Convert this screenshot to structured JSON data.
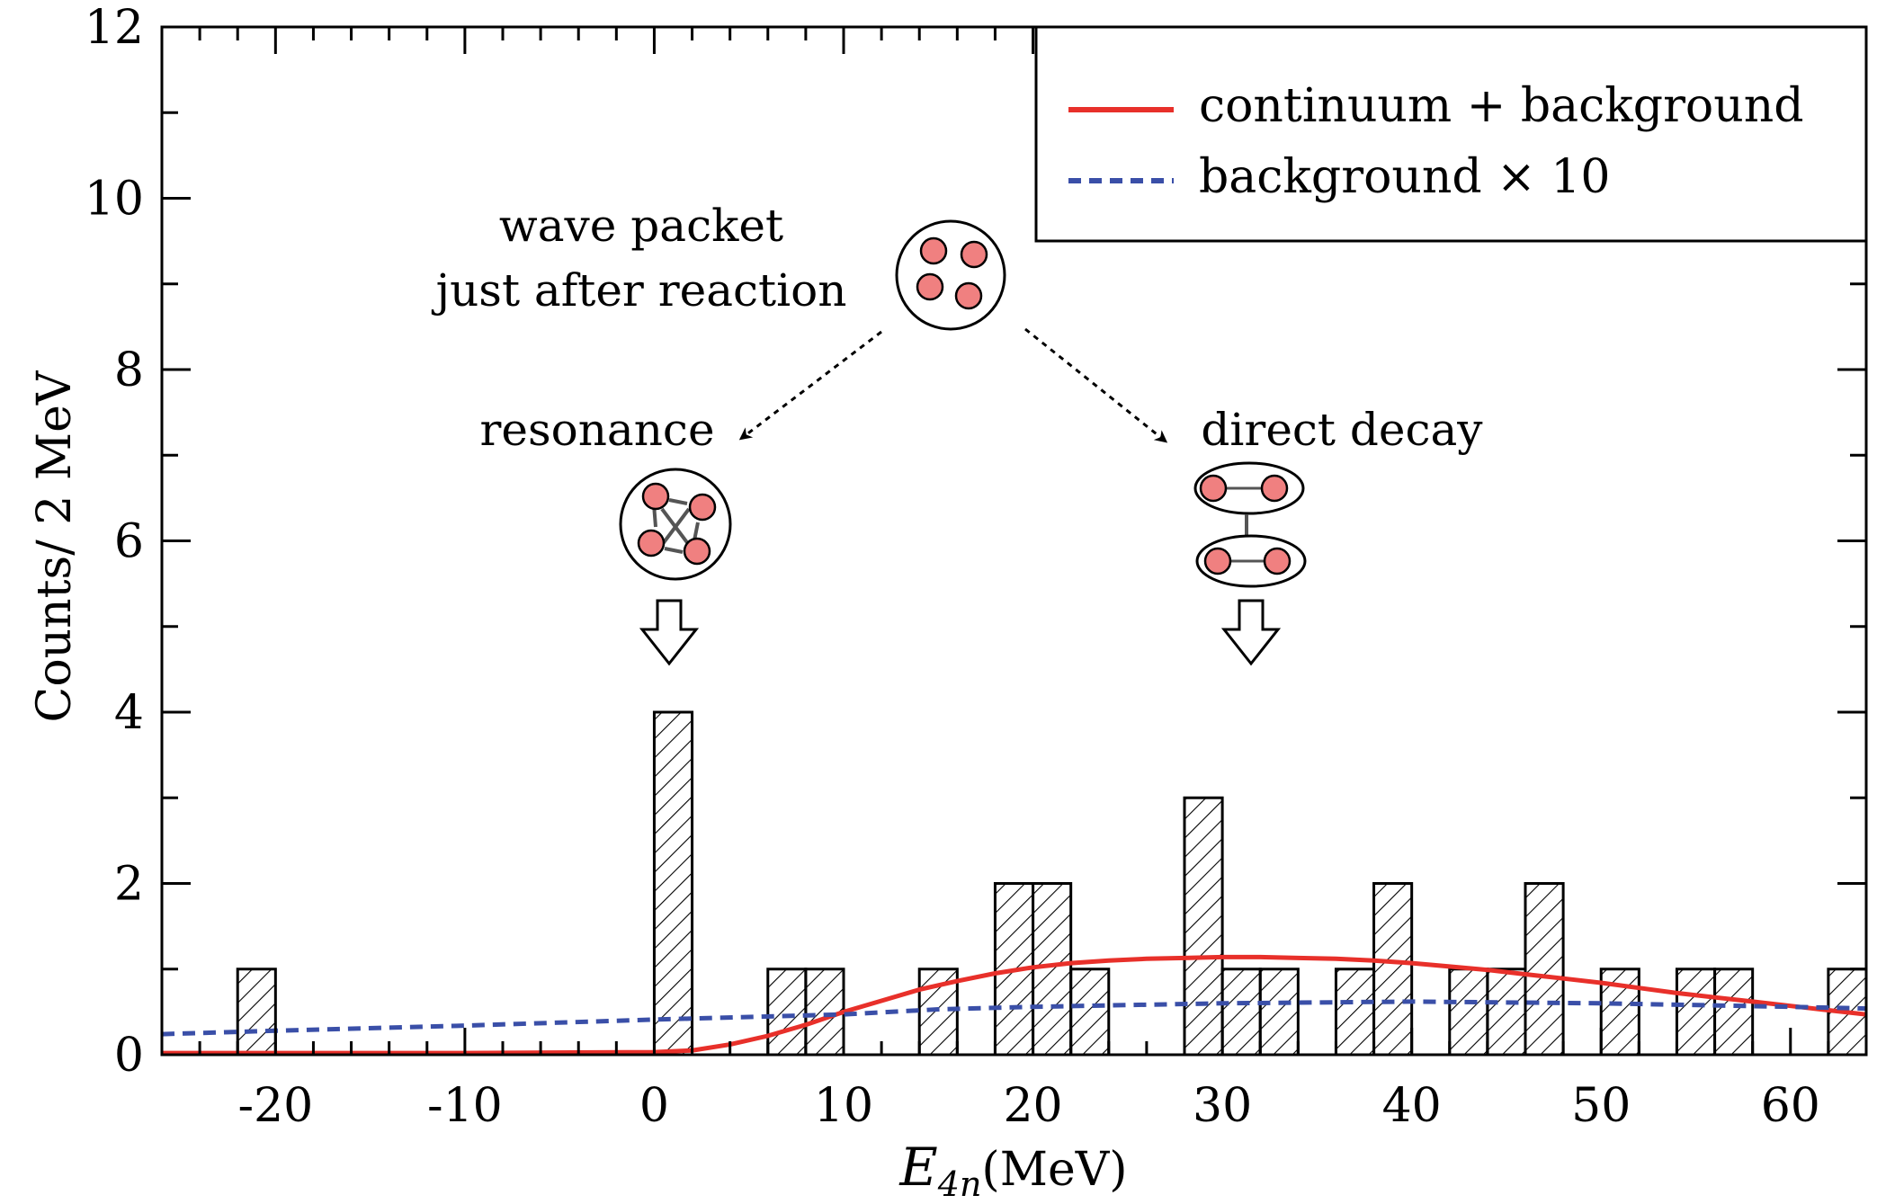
{
  "chart_data": {
    "type": "bar",
    "title": "",
    "xlabel": "E",
    "xlabel_sub": "4n",
    "xlabel_unit": "(MeV)",
    "ylabel": "Counts/ 2 MeV",
    "xlim": [
      -26,
      64
    ],
    "ylim": [
      0,
      12
    ],
    "x_ticks": [
      -20,
      -10,
      0,
      10,
      20,
      30,
      40,
      50,
      60
    ],
    "x_tick_labels": [
      "-20",
      "-10",
      "0",
      "10",
      "20",
      "30",
      "40",
      "50",
      "60"
    ],
    "y_ticks": [
      0,
      2,
      4,
      6,
      8,
      10,
      12
    ],
    "y_tick_labels": [
      "0",
      "2",
      "4",
      "6",
      "8",
      "10",
      "12"
    ],
    "bin_width": 2,
    "histogram": {
      "name": "data",
      "bins": [
        {
          "start": -22,
          "count": 1
        },
        {
          "start": 0,
          "count": 4
        },
        {
          "start": 6,
          "count": 1
        },
        {
          "start": 8,
          "count": 1
        },
        {
          "start": 14,
          "count": 1
        },
        {
          "start": 18,
          "count": 2
        },
        {
          "start": 20,
          "count": 2
        },
        {
          "start": 22,
          "count": 1
        },
        {
          "start": 28,
          "count": 3
        },
        {
          "start": 30,
          "count": 1
        },
        {
          "start": 32,
          "count": 1
        },
        {
          "start": 36,
          "count": 1
        },
        {
          "start": 38,
          "count": 2
        },
        {
          "start": 42,
          "count": 1
        },
        {
          "start": 44,
          "count": 1
        },
        {
          "start": 46,
          "count": 2
        },
        {
          "start": 50,
          "count": 1
        },
        {
          "start": 54,
          "count": 1
        },
        {
          "start": 56,
          "count": 1
        },
        {
          "start": 62,
          "count": 1
        }
      ]
    },
    "series": [
      {
        "name": "continuum + background",
        "style": "solid",
        "color": "#e8302a",
        "x": [
          -26,
          -10,
          0,
          2,
          4,
          6,
          8,
          10,
          12,
          14,
          16,
          18,
          20,
          22,
          24,
          26,
          28,
          30,
          32,
          34,
          36,
          38,
          40,
          42,
          44,
          46,
          48,
          50,
          52,
          54,
          56,
          58,
          60,
          62,
          64
        ],
        "y": [
          0.02,
          0.02,
          0.03,
          0.05,
          0.12,
          0.22,
          0.35,
          0.5,
          0.63,
          0.76,
          0.86,
          0.95,
          1.02,
          1.07,
          1.1,
          1.12,
          1.13,
          1.14,
          1.14,
          1.13,
          1.12,
          1.1,
          1.07,
          1.03,
          0.99,
          0.94,
          0.89,
          0.84,
          0.78,
          0.72,
          0.67,
          0.62,
          0.57,
          0.52,
          0.47
        ]
      },
      {
        "name": "background × 10",
        "style": "dashed",
        "color": "#3a4fa8",
        "x": [
          -26,
          -20,
          -10,
          0,
          10,
          15,
          20,
          30,
          40,
          50,
          60,
          64
        ],
        "y": [
          0.24,
          0.28,
          0.34,
          0.41,
          0.47,
          0.53,
          0.56,
          0.6,
          0.62,
          0.6,
          0.56,
          0.54
        ]
      }
    ],
    "legend": {
      "position": "top-right",
      "entries": [
        {
          "label": "continuum + background",
          "color": "#e8302a",
          "style": "solid"
        },
        {
          "label": "background × 10",
          "color": "#3a4fa8",
          "style": "dashed"
        }
      ]
    },
    "annotations": {
      "wave_packet_line1": "wave packet",
      "wave_packet_line2": "just after reaction",
      "resonance": "resonance",
      "direct_decay": "direct decay",
      "resonance_at_x": 1,
      "direct_decay_at_x": 31
    },
    "colors": {
      "nucleon_fill": "#f08080",
      "arrow_gray": "#555555"
    }
  }
}
